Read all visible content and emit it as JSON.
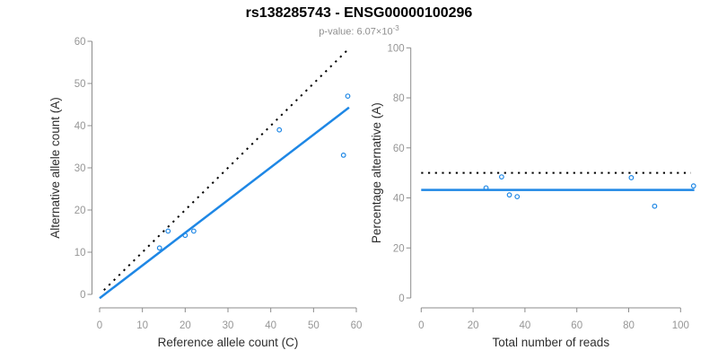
{
  "header": {
    "title": "rs138285743 - ENSG00000100296",
    "p_value_text": "p-value: 6.07×10",
    "p_value_exponent": "-3"
  },
  "colors": {
    "point_blue": "#1E87E5",
    "line_blue": "#1E87E5",
    "dotted_black": "#000000",
    "axis_gray": "#8C8C8C",
    "tick_label_gray": "#969696",
    "axis_title_dark": "#2E2E2E",
    "subtitle_gray": "#8F8F8F"
  },
  "chart_data": [
    {
      "id": "allele-count-scatter",
      "type": "scatter",
      "xlabel": "Reference allele count (C)",
      "ylabel": "Alternative allele count (A)",
      "xlim": [
        0,
        60
      ],
      "ylim": [
        0,
        60
      ],
      "xticks": [
        0,
        10,
        20,
        30,
        40,
        50,
        60
      ],
      "yticks": [
        0,
        10,
        20,
        30,
        40,
        50,
        60
      ],
      "grid": false,
      "points": [
        [
          14,
          11
        ],
        [
          16,
          15
        ],
        [
          20,
          14
        ],
        [
          22,
          15
        ],
        [
          42,
          39
        ],
        [
          57,
          33
        ],
        [
          58,
          47
        ]
      ],
      "lines": [
        {
          "name": "identity-line",
          "x1": 1,
          "y1": 1,
          "x2": 58,
          "y2": 58,
          "style": "dotted",
          "color": "black"
        },
        {
          "name": "fit-line",
          "x1": 0,
          "y1": -0.9,
          "x2": 58.3,
          "y2": 44.3,
          "style": "solid",
          "color": "blue"
        }
      ]
    },
    {
      "id": "percentage-scatter",
      "type": "scatter",
      "xlabel": "Total number of reads",
      "ylabel": "Percentage alternative (A)",
      "xlim": [
        0,
        105
      ],
      "ylim": [
        0,
        100
      ],
      "xticks": [
        0,
        20,
        40,
        60,
        80,
        100
      ],
      "yticks": [
        0,
        20,
        40,
        60,
        80,
        100
      ],
      "grid": false,
      "points": [
        [
          25,
          44.0
        ],
        [
          31,
          48.4
        ],
        [
          34,
          41.2
        ],
        [
          37,
          40.5
        ],
        [
          81,
          48.1
        ],
        [
          90,
          36.7
        ],
        [
          105,
          44.8
        ]
      ],
      "lines": [
        {
          "name": "expected-50pct-line",
          "x1": 0,
          "y1": 50,
          "x2": 104,
          "y2": 50,
          "style": "dotted",
          "color": "black"
        },
        {
          "name": "mean-percentage-line",
          "x1": 0,
          "y1": 43.2,
          "x2": 105.3,
          "y2": 43.2,
          "style": "solid",
          "color": "blue"
        }
      ]
    }
  ]
}
